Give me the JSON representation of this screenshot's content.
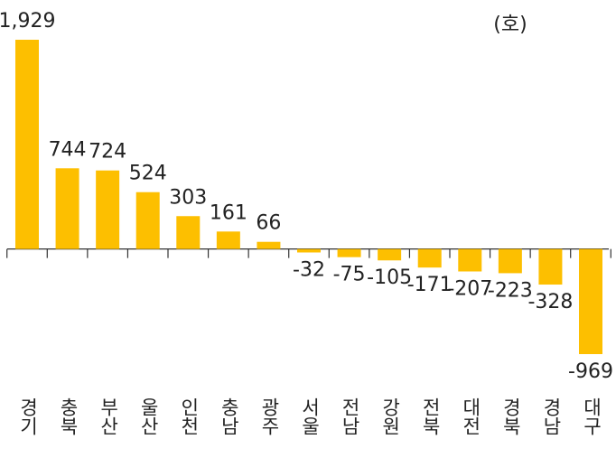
{
  "chart_data": {
    "type": "bar",
    "unit": "(호)",
    "categories": [
      "경기",
      "충북",
      "부산",
      "울산",
      "인천",
      "충남",
      "광주",
      "서울",
      "전남",
      "강원",
      "전북",
      "대전",
      "경북",
      "경남",
      "대구"
    ],
    "values": [
      1929,
      744,
      724,
      524,
      303,
      161,
      66,
      -32,
      -75,
      -105,
      -171,
      -207,
      -223,
      -328,
      -969
    ],
    "value_labels": [
      "1,929",
      "744",
      "724",
      "524",
      "303",
      "161",
      "66",
      "-32",
      "-75",
      "-105",
      "-171",
      "-207",
      "-223",
      "-328",
      "-969"
    ],
    "color": "#fdbf00"
  }
}
